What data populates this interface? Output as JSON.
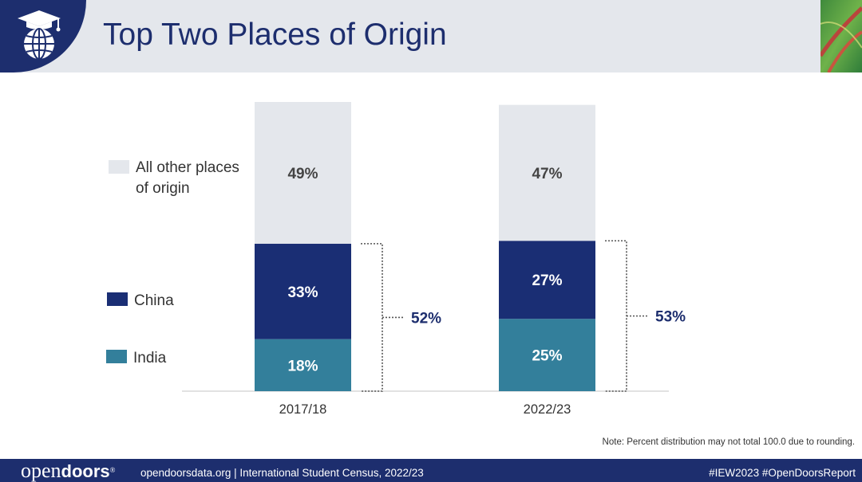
{
  "header": {
    "title": "Top Two Places of Origin",
    "logo_icon": "graduation-globe-icon"
  },
  "chart_data": {
    "type": "bar",
    "stacked": true,
    "categories": [
      "2017/18",
      "2022/23"
    ],
    "series": [
      {
        "name": "India",
        "values": [
          18,
          25
        ],
        "color": "#337f9b",
        "labels": [
          "18%",
          "25%"
        ]
      },
      {
        "name": "China",
        "values": [
          33,
          27
        ],
        "color": "#1a2e74",
        "labels": [
          "33%",
          "27%"
        ]
      },
      {
        "name": "All other places of origin",
        "values": [
          49,
          47
        ],
        "color": "#e4e7ec",
        "labels": [
          "49%",
          "47%"
        ]
      }
    ],
    "brackets": [
      {
        "category": "2017/18",
        "label": "52%",
        "value": 52
      },
      {
        "category": "2022/23",
        "label": "53%",
        "value": 53
      }
    ],
    "legend": {
      "placement": "left",
      "entries": [
        {
          "lines": [
            "All other places",
            "of origin"
          ],
          "color": "#e4e7ec"
        },
        {
          "lines": [
            "China"
          ],
          "color": "#1a2e74"
        },
        {
          "lines": [
            "India"
          ],
          "color": "#337f9b"
        }
      ]
    },
    "ylim": [
      0,
      100
    ]
  },
  "note": "Note: Percent distribution may not total 100.0 due to rounding.",
  "footer": {
    "brand_light": "open",
    "brand_bold": "doors",
    "brand_mark": "®",
    "source": "opendoorsdata.org  |  International Student Census, 2022/23",
    "hashtags": "#IEW2023  #OpenDoorsReport"
  }
}
